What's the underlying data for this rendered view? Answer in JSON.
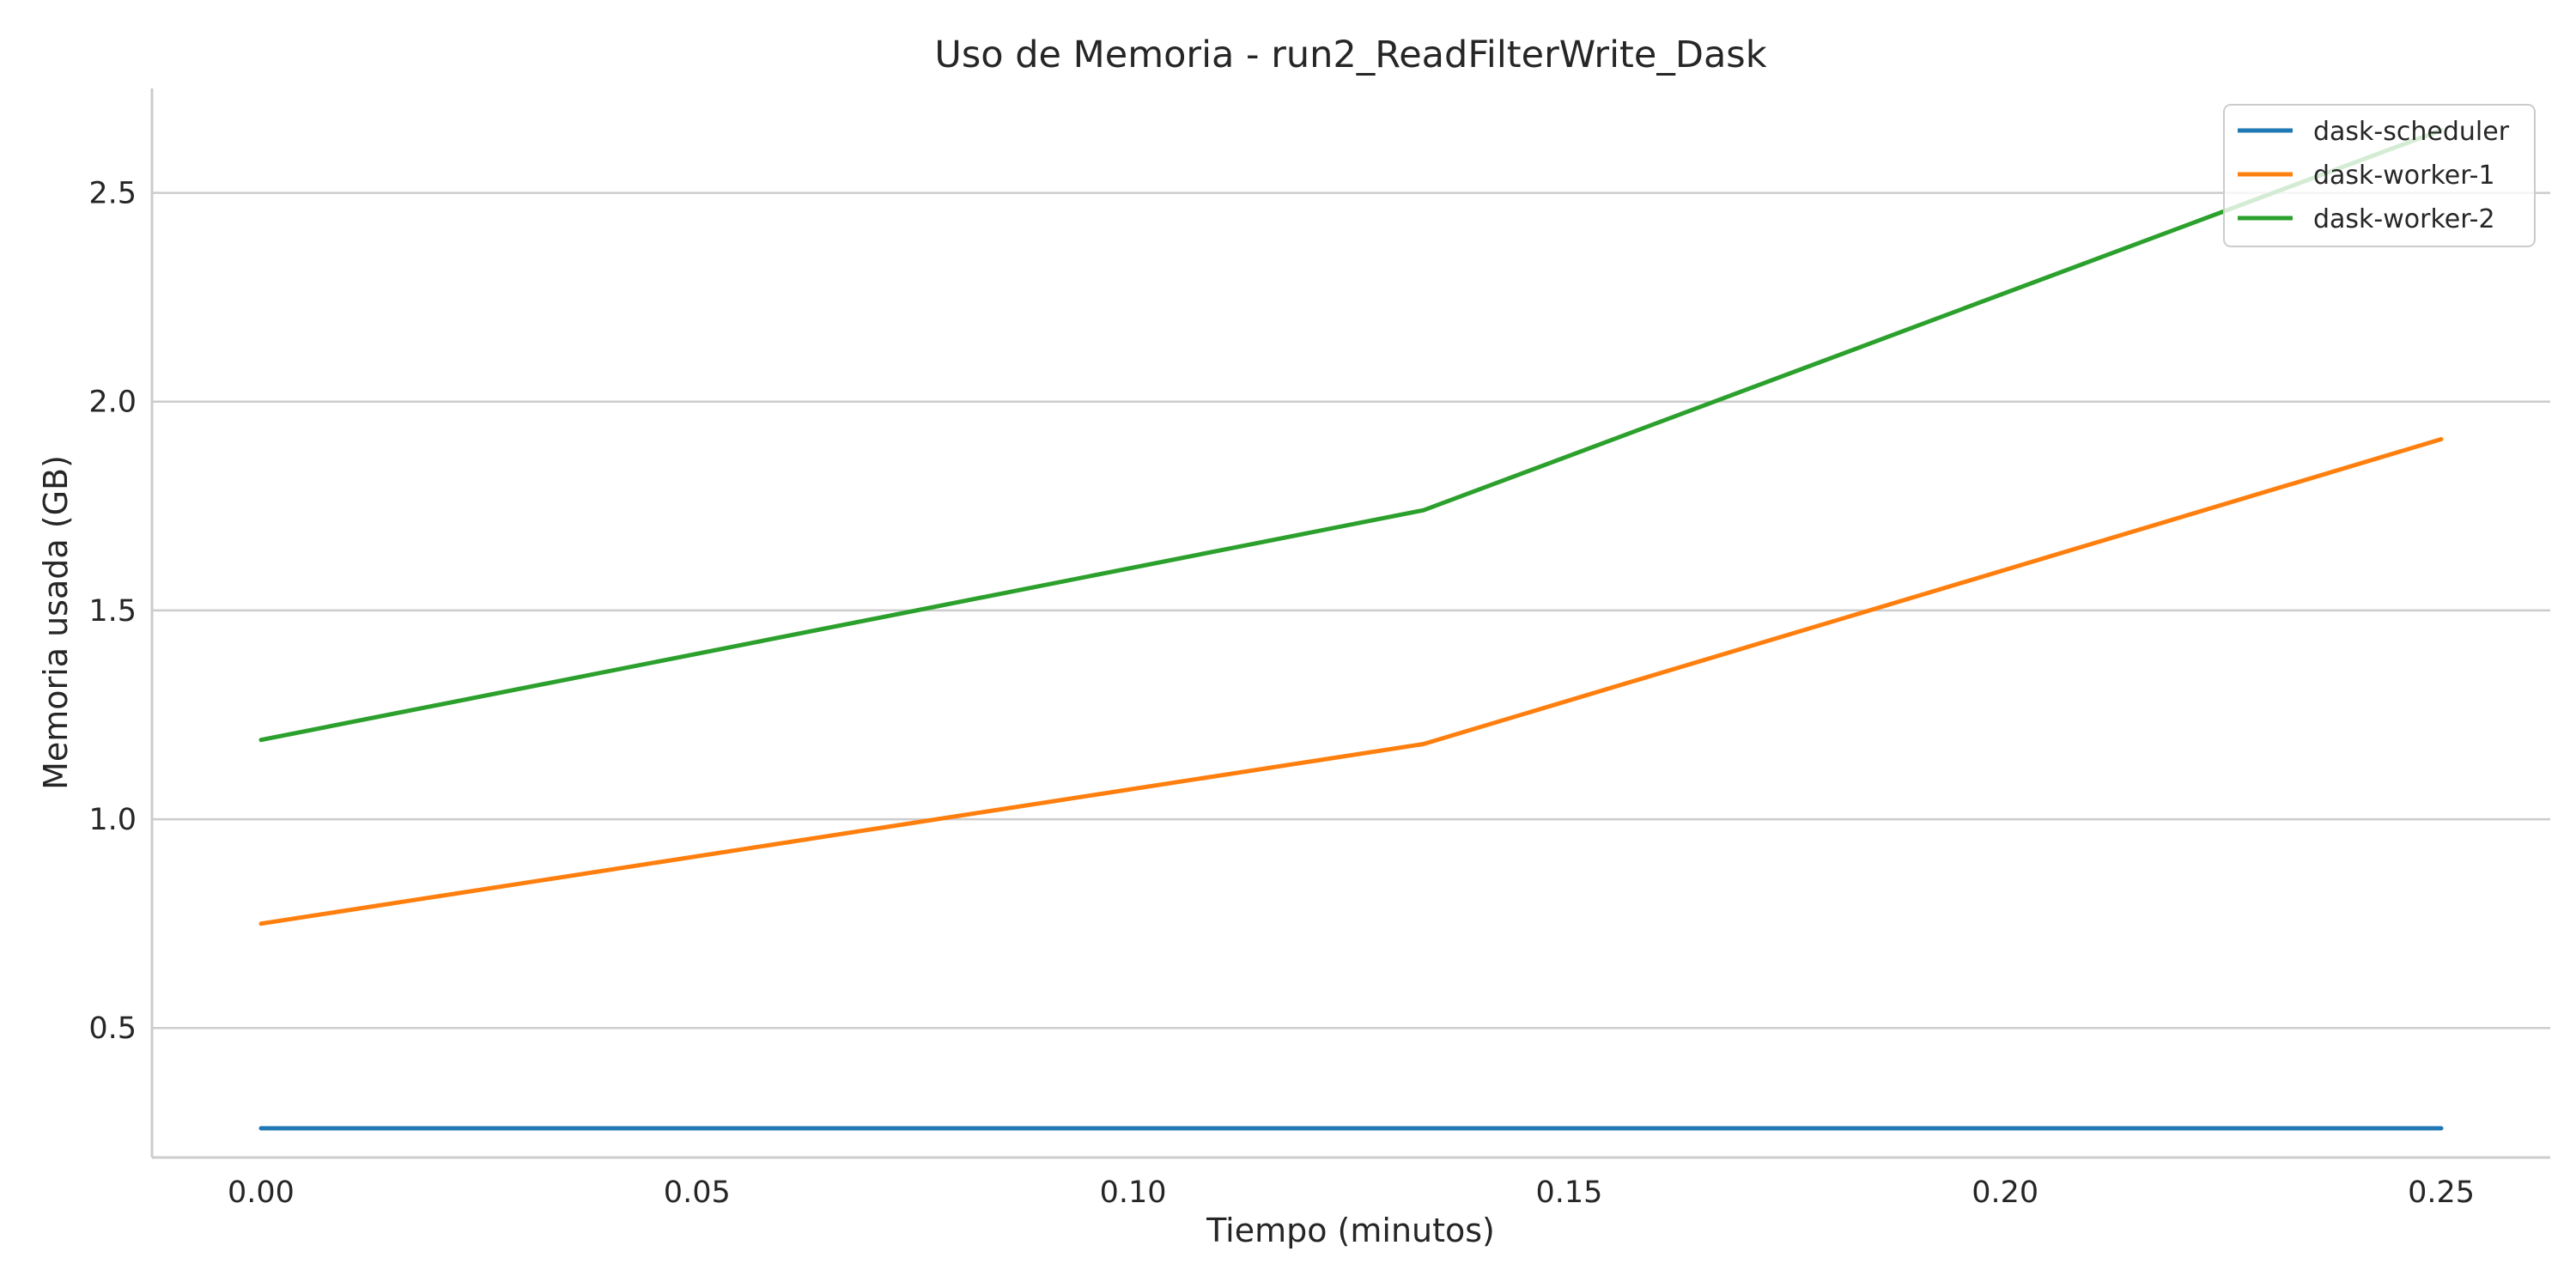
{
  "chart_data": {
    "type": "line",
    "title": "Uso de Memoria - run2_ReadFilterWrite_Dask",
    "xlabel": "Tiempo (minutos)",
    "ylabel": "Memoria usada (GB)",
    "xlim": [
      -0.0125,
      0.2625
    ],
    "ylim": [
      0.19,
      2.75
    ],
    "xticks": [
      0.0,
      0.05,
      0.1,
      0.15,
      0.2,
      0.25
    ],
    "xtick_labels": [
      "0.00",
      "0.05",
      "0.10",
      "0.15",
      "0.20",
      "0.25"
    ],
    "yticks": [
      0.5,
      1.0,
      1.5,
      2.0,
      2.5
    ],
    "ytick_labels": [
      "0.5",
      "1.0",
      "1.5",
      "2.0",
      "2.5"
    ],
    "grid": "horizontal",
    "legend_position": "top-right",
    "x": [
      0.0,
      0.1333,
      0.25
    ],
    "series": [
      {
        "name": "dask-scheduler",
        "color": "#1f77b4",
        "values": [
          0.26,
          0.26,
          0.26
        ]
      },
      {
        "name": "dask-worker-1",
        "color": "#ff7f0e",
        "values": [
          0.75,
          1.18,
          1.91
        ]
      },
      {
        "name": "dask-worker-2",
        "color": "#2ca02c",
        "values": [
          1.19,
          1.74,
          2.65
        ]
      }
    ]
  }
}
